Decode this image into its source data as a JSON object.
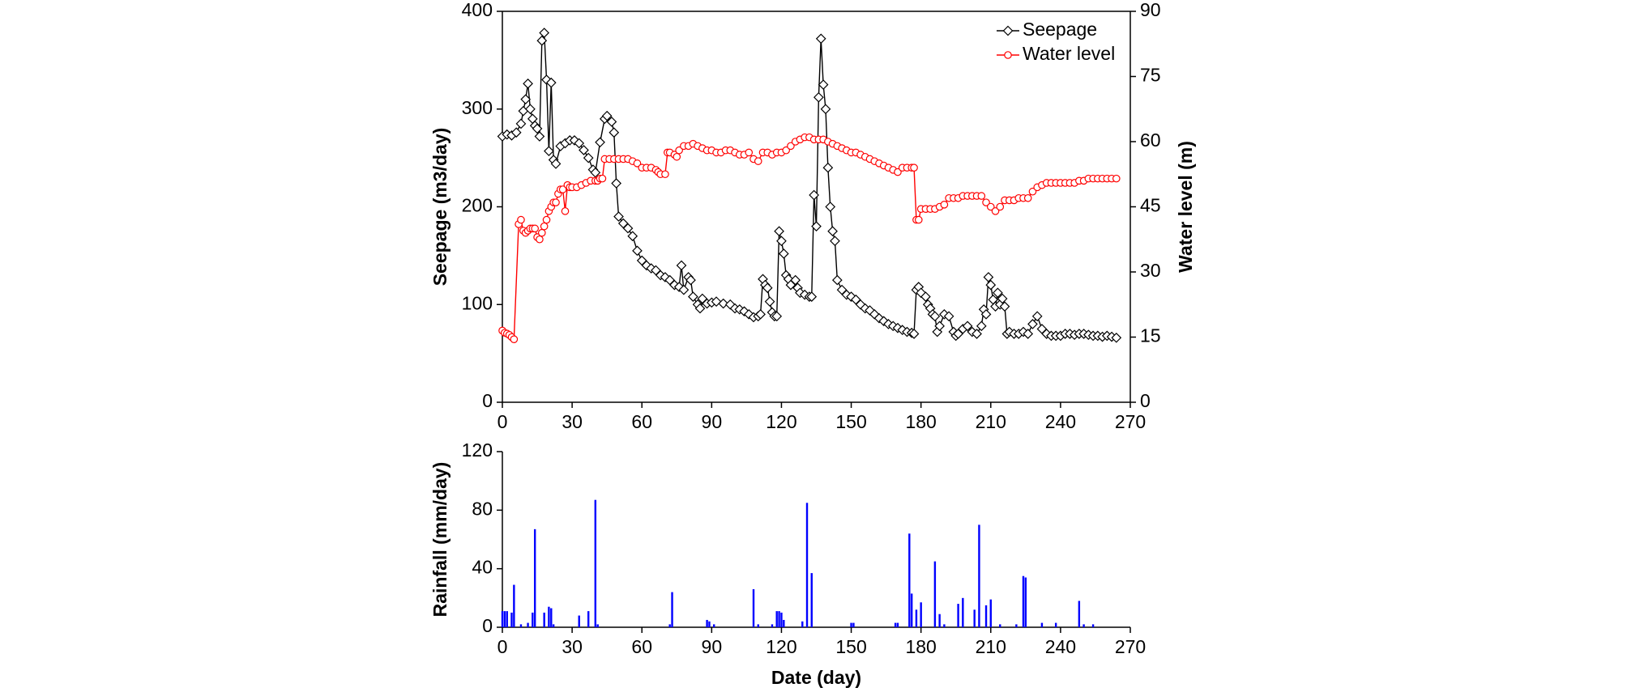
{
  "chart_data": [
    {
      "type": "line",
      "ylabel": "Seepage (m3/day)",
      "y2label": "Water level (m)",
      "xlim": [
        0,
        270
      ],
      "xticks": [
        0,
        30,
        60,
        90,
        120,
        150,
        180,
        210,
        240,
        270
      ],
      "ylim": [
        0,
        400
      ],
      "yticks": [
        0,
        100,
        200,
        300,
        400
      ],
      "y2lim": [
        0,
        90
      ],
      "y2ticks": [
        0,
        15,
        30,
        45,
        60,
        75,
        90
      ],
      "legend": "upper right",
      "series": [
        {
          "name": "Seepage",
          "color": "#000000",
          "marker": "diamond",
          "x": [
            0,
            2,
            4,
            6,
            8,
            9,
            10,
            11,
            12,
            13,
            14,
            15,
            16,
            17,
            18,
            19,
            20,
            21,
            22,
            23,
            25,
            27,
            29,
            31,
            33,
            35,
            37,
            39,
            40,
            42,
            44,
            45,
            47,
            48,
            49,
            50,
            52,
            54,
            56,
            58,
            60,
            62,
            64,
            66,
            68,
            70,
            72,
            74,
            76,
            77,
            78,
            80,
            81,
            82,
            84,
            85,
            86,
            88,
            90,
            92,
            95,
            98,
            100,
            102,
            104,
            106,
            108,
            110,
            111,
            112,
            113,
            114,
            115,
            116,
            117,
            118,
            119,
            120,
            121,
            122,
            123,
            124,
            126,
            127,
            128,
            130,
            132,
            133,
            134,
            135,
            136,
            137,
            138,
            139,
            140,
            141,
            142,
            143,
            144,
            146,
            148,
            150,
            152,
            154,
            156,
            158,
            160,
            162,
            164,
            166,
            168,
            170,
            172,
            174,
            176,
            177,
            178,
            179,
            180,
            182,
            183,
            184,
            185,
            186,
            187,
            188,
            190,
            192,
            194,
            195,
            196,
            198,
            200,
            202,
            204,
            206,
            207,
            208,
            209,
            210,
            211,
            212,
            213,
            214,
            215,
            216,
            217,
            218,
            220,
            222,
            224,
            226,
            228,
            230,
            232,
            234,
            236,
            238,
            240,
            242,
            244,
            246,
            248,
            250,
            252,
            254,
            256,
            258,
            260,
            262,
            264
          ],
          "values": [
            272,
            274,
            273,
            276,
            285,
            298,
            310,
            326,
            300,
            290,
            283,
            280,
            272,
            370,
            378,
            330,
            257,
            327,
            248,
            244,
            262,
            265,
            268,
            268,
            265,
            258,
            250,
            238,
            235,
            266,
            290,
            293,
            287,
            276,
            224,
            190,
            183,
            178,
            170,
            155,
            145,
            140,
            137,
            135,
            130,
            128,
            125,
            120,
            118,
            140,
            115,
            128,
            125,
            108,
            100,
            96,
            106,
            101,
            102,
            103,
            101,
            100,
            96,
            95,
            93,
            90,
            87,
            88,
            90,
            126,
            120,
            117,
            103,
            92,
            88,
            88,
            175,
            165,
            152,
            130,
            126,
            120,
            125,
            117,
            112,
            110,
            108,
            108,
            212,
            180,
            312,
            372,
            325,
            300,
            240,
            200,
            175,
            165,
            125,
            115,
            110,
            108,
            105,
            100,
            96,
            94,
            90,
            86,
            83,
            80,
            78,
            76,
            74,
            72,
            71,
            70,
            115,
            118,
            112,
            108,
            100,
            96,
            90,
            88,
            72,
            78,
            90,
            88,
            72,
            68,
            70,
            75,
            78,
            72,
            70,
            78,
            95,
            90,
            128,
            120,
            105,
            98,
            112,
            100,
            106,
            98,
            70,
            72,
            70,
            70,
            72,
            70,
            80,
            88,
            75,
            70,
            68,
            68,
            68,
            70,
            70,
            69,
            70,
            70,
            69,
            68,
            68,
            67,
            68,
            67,
            66
          ]
        },
        {
          "name": "Water level",
          "color": "#ff0000",
          "marker": "circle",
          "axis": "y2",
          "x": [
            0,
            1,
            2,
            3,
            4,
            5,
            7,
            8,
            9,
            10,
            11,
            12,
            13,
            14,
            15,
            16,
            17,
            18,
            19,
            20,
            21,
            22,
            23,
            24,
            25,
            26,
            27,
            28,
            29,
            30,
            32,
            34,
            36,
            38,
            40,
            41,
            42,
            43,
            44,
            46,
            48,
            50,
            52,
            54,
            56,
            58,
            60,
            62,
            64,
            66,
            67,
            68,
            70,
            71,
            72,
            74,
            75,
            76,
            78,
            80,
            82,
            84,
            86,
            88,
            90,
            92,
            94,
            96,
            98,
            100,
            102,
            104,
            106,
            108,
            110,
            112,
            114,
            116,
            118,
            120,
            122,
            124,
            126,
            128,
            130,
            132,
            134,
            136,
            138,
            140,
            142,
            144,
            146,
            148,
            150,
            152,
            154,
            156,
            158,
            160,
            162,
            164,
            166,
            168,
            170,
            172,
            174,
            176,
            177,
            178,
            179,
            180,
            182,
            184,
            186,
            188,
            190,
            192,
            194,
            196,
            198,
            200,
            202,
            204,
            206,
            208,
            210,
            212,
            214,
            216,
            218,
            220,
            222,
            224,
            226,
            228,
            230,
            232,
            234,
            236,
            238,
            240,
            242,
            244,
            246,
            248,
            250,
            252,
            254,
            256,
            258,
            260,
            262,
            264
          ],
          "values": [
            16.5,
            16,
            15.8,
            15.5,
            15,
            14.5,
            41,
            42,
            39.5,
            39,
            39.5,
            40,
            40,
            40,
            38,
            37.5,
            39,
            40.5,
            42,
            44,
            45,
            46,
            46,
            48,
            49,
            49,
            44,
            50,
            49.5,
            49.5,
            49.5,
            50,
            50.5,
            51,
            51,
            51,
            51.5,
            51.5,
            56,
            56,
            56,
            56,
            56,
            56,
            55.5,
            55,
            54,
            54,
            54,
            53.5,
            53,
            52.5,
            52.5,
            57.5,
            57.5,
            57,
            56.5,
            58,
            59,
            59,
            59.5,
            59,
            58.5,
            58,
            58,
            57.5,
            57.5,
            58,
            58,
            57.5,
            57,
            57,
            57.5,
            56,
            55.5,
            57.5,
            57.5,
            57,
            57.5,
            57.5,
            58,
            59,
            60,
            60.5,
            61,
            61,
            60.5,
            60.5,
            60.5,
            60,
            59.5,
            59,
            58.5,
            58,
            57.5,
            57.5,
            57,
            56.5,
            56,
            55.5,
            55,
            54.5,
            54,
            53.5,
            53,
            54,
            54,
            54,
            54,
            42,
            42,
            44.5,
            44.5,
            44.5,
            44.5,
            45,
            45.5,
            47,
            47,
            47,
            47.5,
            47.5,
            47.5,
            47.5,
            47.5,
            46,
            45,
            44,
            45,
            46.5,
            46.5,
            46.5,
            47,
            47,
            47,
            48.5,
            49.5,
            50,
            50.5,
            50.5,
            50.5,
            50.5,
            50.5,
            50.5,
            50.5,
            51,
            51,
            51.5,
            51.5,
            51.5,
            51.5,
            51.5,
            51.5,
            51.5
          ]
        }
      ]
    },
    {
      "type": "bar",
      "xlabel": "Date (day)",
      "ylabel": "Rainfall (mm/day)",
      "xlim": [
        0,
        270
      ],
      "xticks": [
        0,
        30,
        60,
        90,
        120,
        150,
        180,
        210,
        240,
        270
      ],
      "ylim": [
        0,
        120
      ],
      "yticks": [
        0,
        40,
        80,
        120
      ],
      "color": "#0000ff",
      "x": [
        0,
        1,
        2,
        4,
        5,
        8,
        11,
        13,
        14,
        18,
        20,
        21,
        22,
        33,
        37,
        40,
        41,
        72,
        73,
        88,
        89,
        91,
        108,
        110,
        116,
        118,
        119,
        120,
        121,
        129,
        131,
        133,
        150,
        151,
        169,
        170,
        175,
        176,
        178,
        180,
        186,
        188,
        190,
        196,
        198,
        203,
        205,
        208,
        210,
        214,
        221,
        224,
        225,
        232,
        238,
        248,
        250,
        254
      ],
      "values": [
        11,
        11,
        11,
        10,
        29,
        2,
        3,
        10,
        67,
        10,
        14,
        13,
        2,
        8,
        11,
        87,
        2,
        2,
        24,
        5,
        4,
        2,
        26,
        2,
        2,
        11,
        11,
        10,
        5,
        4,
        85,
        37,
        3,
        3,
        3,
        3,
        64,
        23,
        12,
        17,
        45,
        9,
        2,
        16,
        20,
        12,
        70,
        15,
        19,
        2,
        2,
        35,
        34,
        3,
        3,
        18,
        2,
        2
      ]
    }
  ]
}
